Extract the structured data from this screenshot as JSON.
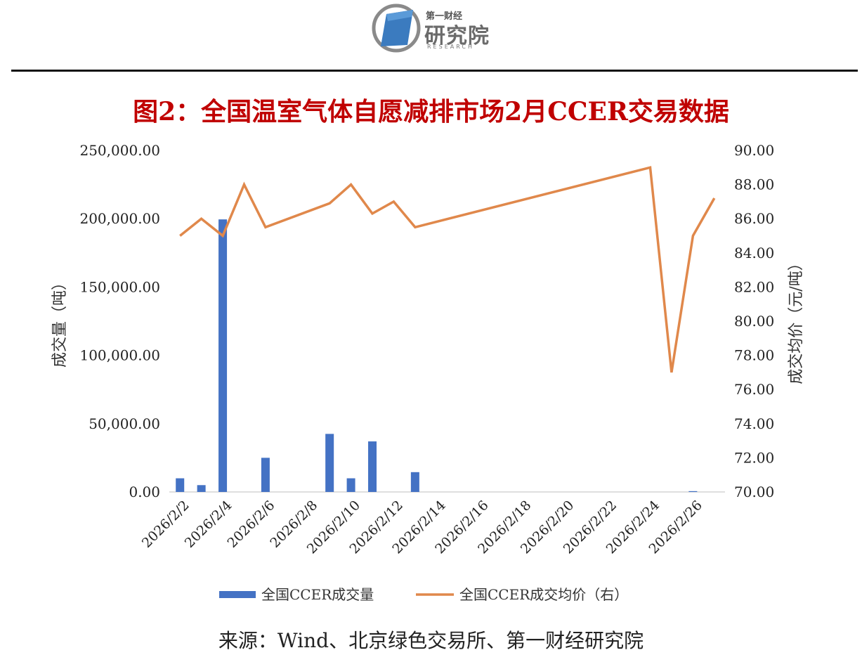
{
  "logo": {
    "small_text": "第一财经",
    "main_text": "研究院",
    "english_text": "RESEARCH"
  },
  "title": "图2：全国温室气体自愿减排市场2月CCER交易数据",
  "source": "来源：Wind、北京绿色交易所、第一财经研究院",
  "colors": {
    "bar": "#4472c4",
    "line": "#e0884b",
    "title": "#c00000"
  },
  "chart_data": {
    "type": "bar",
    "x": [
      "2026/2/2",
      "2026/2/3",
      "2026/2/4",
      "2026/2/5",
      "2026/2/6",
      "2026/2/7",
      "2026/2/8",
      "2026/2/9",
      "2026/2/10",
      "2026/2/11",
      "2026/2/12",
      "2026/2/13",
      "2026/2/14",
      "2026/2/15",
      "2026/2/16",
      "2026/2/17",
      "2026/2/18",
      "2026/2/19",
      "2026/2/20",
      "2026/2/21",
      "2026/2/22",
      "2026/2/23",
      "2026/2/24",
      "2026/2/25",
      "2026/2/26",
      "2026/2/27"
    ],
    "x_tick_labels": [
      "2026/2/2",
      "2026/2/4",
      "2026/2/6",
      "2026/2/8",
      "2026/2/10",
      "2026/2/12",
      "2026/2/14",
      "2026/2/16",
      "2026/2/18",
      "2026/2/20",
      "2026/2/22",
      "2026/2/24",
      "2026/2/26"
    ],
    "series": [
      {
        "name": "全国CCER成交量",
        "type": "bar",
        "axis": "left",
        "points": [
          {
            "x": "2026/2/2",
            "y": 10000
          },
          {
            "x": "2026/2/3",
            "y": 5000
          },
          {
            "x": "2026/2/4",
            "y": 199500
          },
          {
            "x": "2026/2/6",
            "y": 25000
          },
          {
            "x": "2026/2/9",
            "y": 42500
          },
          {
            "x": "2026/2/10",
            "y": 10000
          },
          {
            "x": "2026/2/11",
            "y": 37000
          },
          {
            "x": "2026/2/13",
            "y": 14500
          },
          {
            "x": "2026/2/26",
            "y": 600
          }
        ]
      },
      {
        "name": "全国CCER成交均价（右）",
        "type": "line",
        "axis": "right",
        "points": [
          {
            "x": "2026/2/2",
            "y": 85.0
          },
          {
            "x": "2026/2/3",
            "y": 86.0
          },
          {
            "x": "2026/2/4",
            "y": 85.0
          },
          {
            "x": "2026/2/5",
            "y": 88.0
          },
          {
            "x": "2026/2/6",
            "y": 85.5
          },
          {
            "x": "2026/2/9",
            "y": 86.9
          },
          {
            "x": "2026/2/10",
            "y": 88.0
          },
          {
            "x": "2026/2/11",
            "y": 86.3
          },
          {
            "x": "2026/2/12",
            "y": 87.0
          },
          {
            "x": "2026/2/13",
            "y": 85.5
          },
          {
            "x": "2026/2/24",
            "y": 89.0
          },
          {
            "x": "2026/2/25",
            "y": 77.0
          },
          {
            "x": "2026/2/26",
            "y": 85.0
          },
          {
            "x": "2026/2/27",
            "y": 87.2
          }
        ]
      }
    ],
    "y_left": {
      "label": "成交量（吨）",
      "range": [
        0,
        250000
      ],
      "ticks": [
        "0.00",
        "50,000.00",
        "100,000.00",
        "150,000.00",
        "200,000.00",
        "250,000.00"
      ]
    },
    "y_right": {
      "label": "成交均价（元/吨）",
      "range": [
        70,
        90
      ],
      "ticks": [
        "70.00",
        "72.00",
        "74.00",
        "76.00",
        "78.00",
        "80.00",
        "82.00",
        "84.00",
        "86.00",
        "88.00",
        "90.00"
      ]
    },
    "grid": false,
    "legend_position": "bottom"
  }
}
